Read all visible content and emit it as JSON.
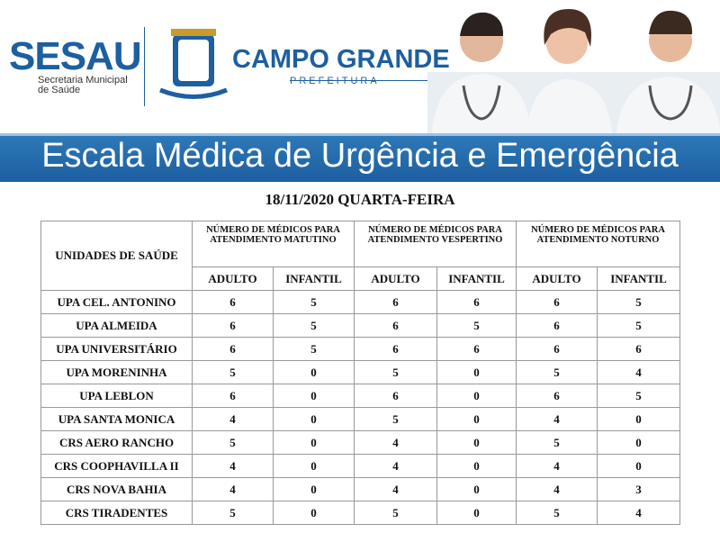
{
  "header": {
    "logo": "SESAU",
    "logo_subtitle": "Secretaria Municipal de Saúde",
    "city": "CAMPO GRANDE",
    "city_subtitle": "PREFEITURA"
  },
  "banner": {
    "title": "Escala Médica de Urgência e Emergência"
  },
  "date": "18/11/2020 QUARTA-FEIRA",
  "table": {
    "unit_header": "UNIDADES DE SAÚDE",
    "groups": [
      "NÚMERO DE MÉDICOS PARA ATENDIMENTO MATUTINO",
      "NÚMERO DE MÉDICOS PARA ATENDIMENTO VESPERTINO",
      "NÚMERO DE MÉDICOS PARA ATENDIMENTO NOTURNO"
    ],
    "subheaders": [
      "ADULTO",
      "INFANTIL",
      "ADULTO",
      "INFANTIL",
      "ADULTO",
      "INFANTIL"
    ],
    "rows": [
      [
        "UPA CEL. ANTONINO",
        6,
        5,
        6,
        6,
        6,
        5
      ],
      [
        "UPA ALMEIDA",
        6,
        5,
        6,
        5,
        6,
        5
      ],
      [
        "UPA UNIVERSITÁRIO",
        6,
        5,
        6,
        6,
        6,
        6
      ],
      [
        "UPA MORENINHA",
        5,
        0,
        5,
        0,
        5,
        4
      ],
      [
        "UPA LEBLON",
        6,
        0,
        6,
        0,
        6,
        5
      ],
      [
        "UPA SANTA MONICA",
        4,
        0,
        5,
        0,
        4,
        0
      ],
      [
        "CRS AERO RANCHO",
        5,
        0,
        4,
        0,
        5,
        0
      ],
      [
        "CRS COOPHAVILLA II",
        4,
        0,
        4,
        0,
        4,
        0
      ],
      [
        "CRS NOVA BAHIA",
        4,
        0,
        4,
        0,
        4,
        3
      ],
      [
        "CRS TIRADENTES",
        5,
        0,
        5,
        0,
        5,
        4
      ]
    ]
  }
}
